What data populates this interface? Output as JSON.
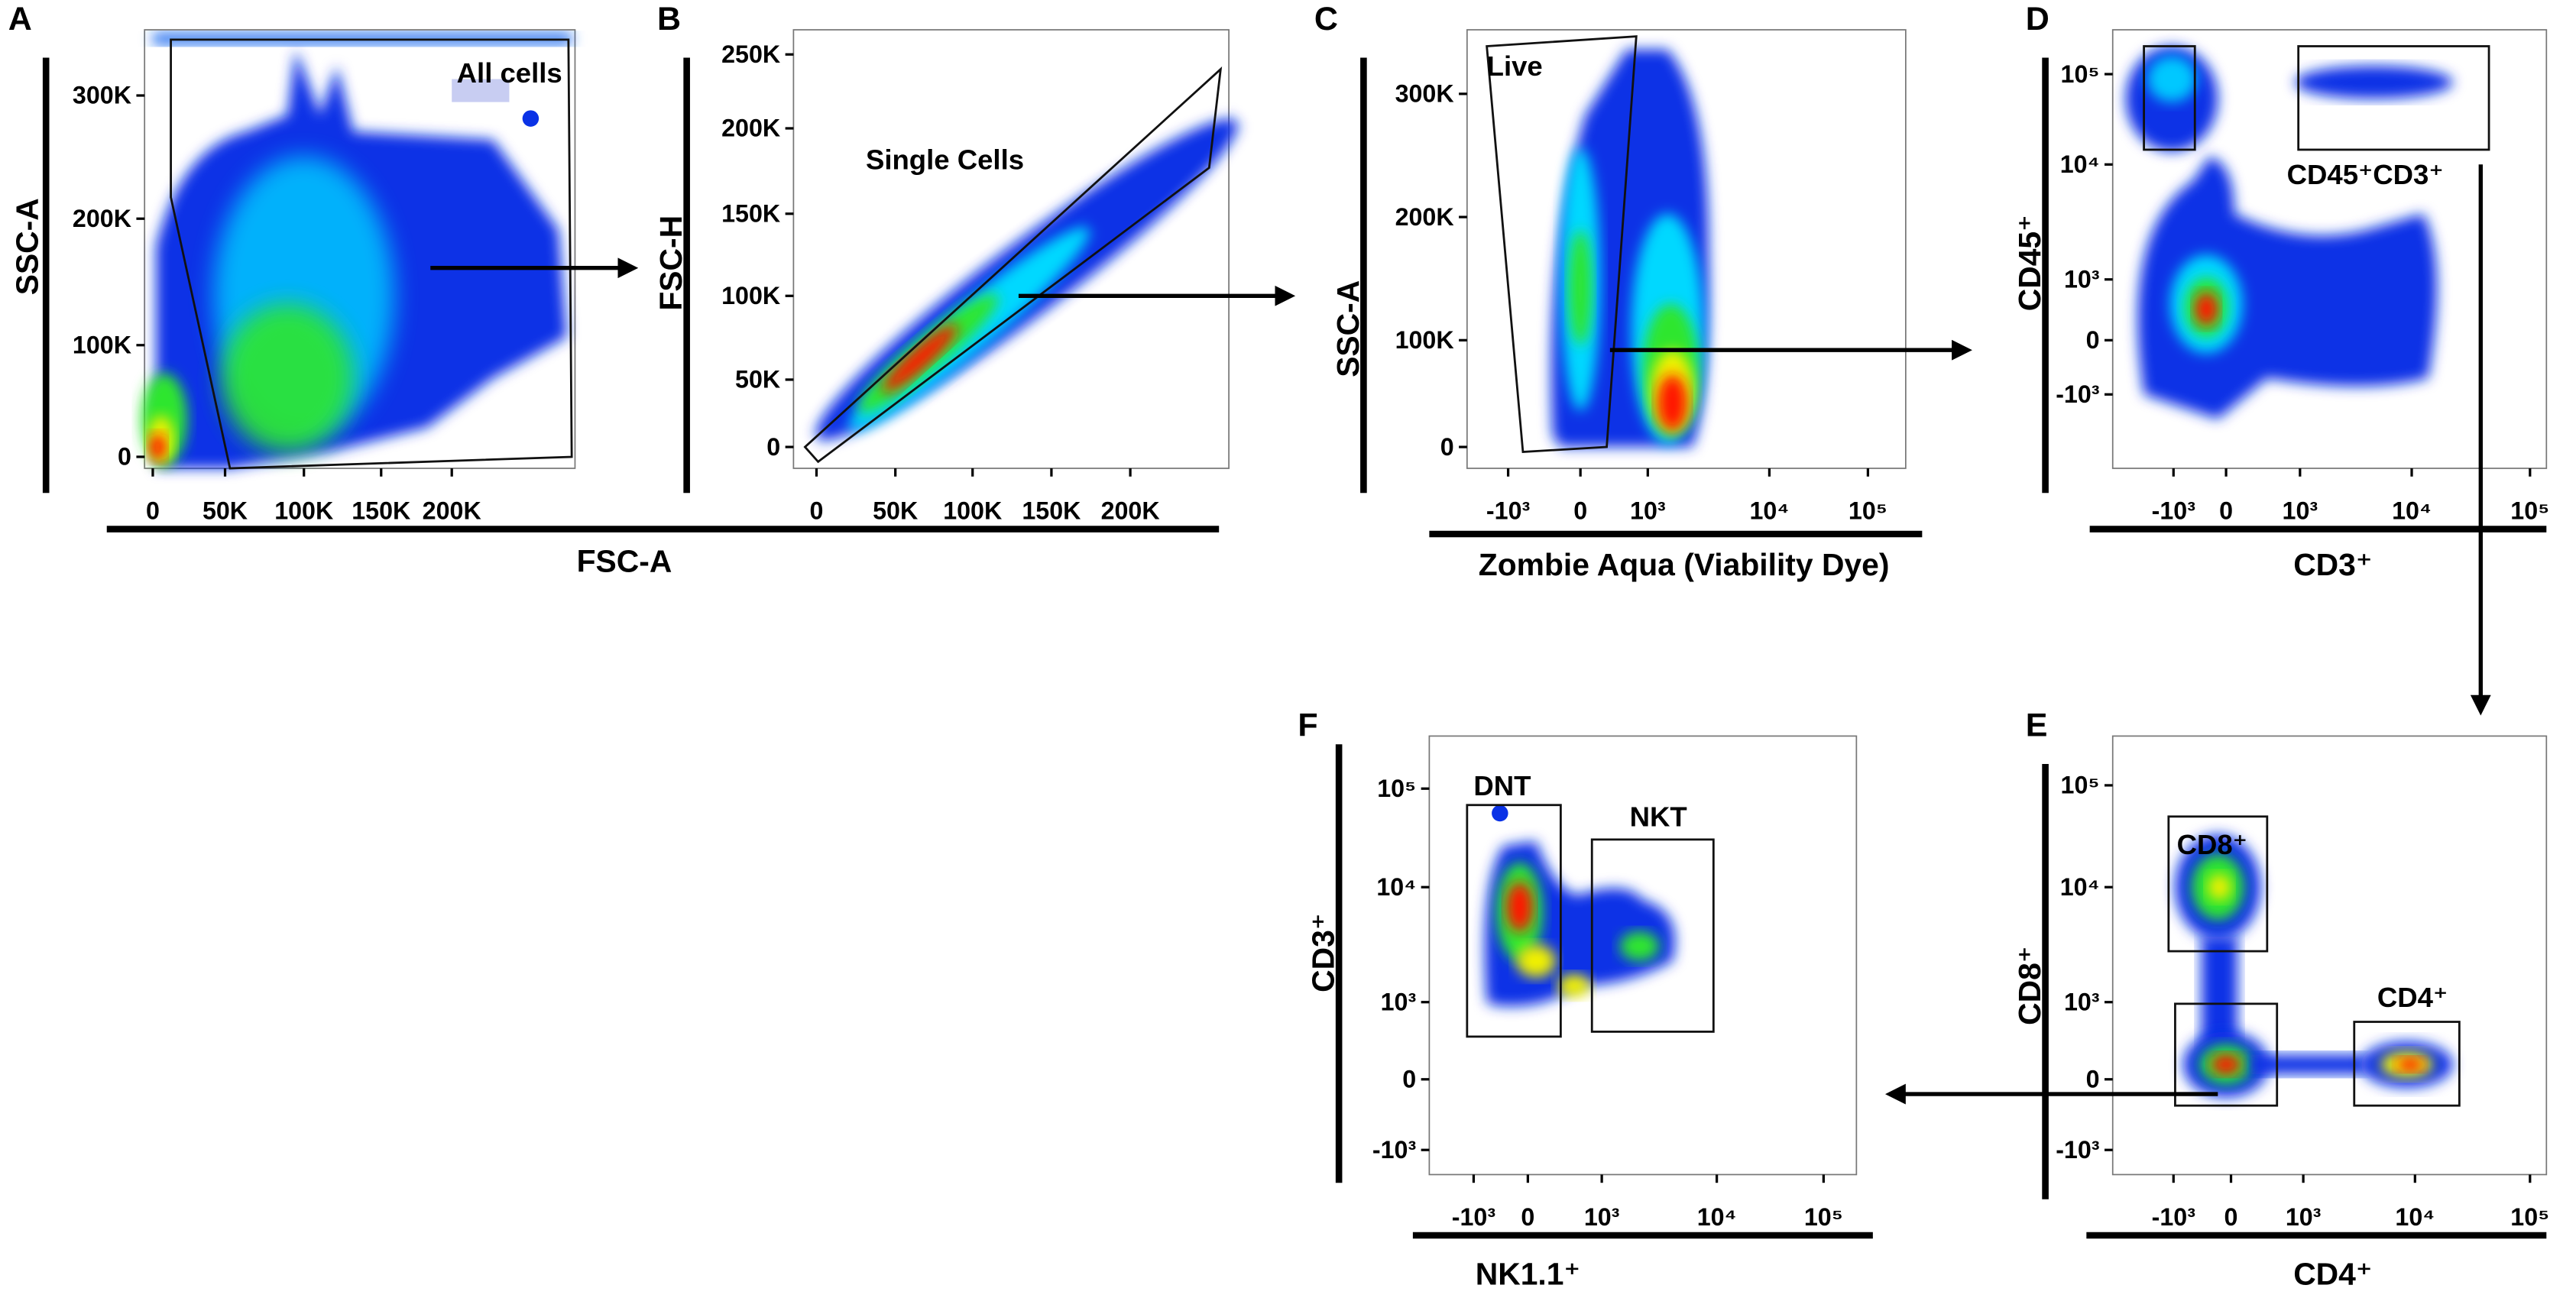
{
  "figure": {
    "colors": {
      "low": "#0a32e6",
      "mid_low": "#00d8ff",
      "mid": "#2ee62e",
      "mid_high": "#f0f000",
      "high": "#ff1400",
      "arrow": "#000000"
    }
  },
  "chart_data": [
    {
      "panel": "A",
      "type": "scatter",
      "subtype": "density",
      "xlabel": "FSC-A",
      "ylabel": "SSC-A",
      "x_scale": "linear",
      "y_scale": "linear",
      "xticks": [
        "0",
        "50K",
        "100K",
        "150K",
        "200K"
      ],
      "yticks": [
        "0",
        "100K",
        "200K",
        "300K"
      ],
      "gates": [
        {
          "label": "All cells"
        }
      ]
    },
    {
      "panel": "B",
      "type": "scatter",
      "subtype": "density",
      "xlabel": "FSC-A",
      "ylabel": "FSC-H",
      "x_scale": "linear",
      "y_scale": "linear",
      "xticks": [
        "0",
        "50K",
        "100K",
        "150K",
        "200K"
      ],
      "yticks": [
        "0",
        "50K",
        "100K",
        "150K",
        "200K",
        "250K"
      ],
      "gates": [
        {
          "label": "Single Cells"
        }
      ]
    },
    {
      "panel": "C",
      "type": "scatter",
      "subtype": "density",
      "xlabel": "Zombie Aqua (Viability Dye)",
      "ylabel": "SSC-A",
      "x_scale": "biexponential",
      "y_scale": "linear",
      "xticks": [
        "-10³",
        "0",
        "10³",
        "10⁴",
        "10⁵"
      ],
      "yticks": [
        "0",
        "100K",
        "200K",
        "300K"
      ],
      "gates": [
        {
          "label": "Live"
        }
      ]
    },
    {
      "panel": "D",
      "type": "scatter",
      "subtype": "density",
      "xlabel": "CD3⁺",
      "ylabel": "CD45⁺",
      "x_scale": "biexponential",
      "y_scale": "biexponential",
      "xticks": [
        "-10³",
        "0",
        "10³",
        "10⁴",
        "10⁵"
      ],
      "yticks": [
        "-10³",
        "0",
        "10³",
        "10⁴",
        "10⁵"
      ],
      "gates": [
        {
          "label": "CD45⁺CD3⁺"
        }
      ]
    },
    {
      "panel": "E",
      "type": "scatter",
      "subtype": "density",
      "xlabel": "CD4⁺",
      "ylabel": "CD8⁺",
      "x_scale": "biexponential",
      "y_scale": "biexponential",
      "xticks": [
        "-10³",
        "0",
        "10³",
        "10⁴",
        "10⁵"
      ],
      "yticks": [
        "-10³",
        "0",
        "10³",
        "10⁴",
        "10⁵"
      ],
      "gates": [
        {
          "label": "CD8⁺"
        },
        {
          "label": "CD4⁺"
        }
      ]
    },
    {
      "panel": "F",
      "type": "scatter",
      "subtype": "density",
      "xlabel": "NK1.1⁺",
      "ylabel": "CD3⁺",
      "x_scale": "biexponential",
      "y_scale": "biexponential",
      "xticks": [
        "-10³",
        "0",
        "10³",
        "10⁴",
        "10⁵"
      ],
      "yticks": [
        "-10³",
        "0",
        "10³",
        "10⁴",
        "10⁵"
      ],
      "gates": [
        {
          "label": "DNT"
        },
        {
          "label": "NKT"
        }
      ]
    }
  ]
}
